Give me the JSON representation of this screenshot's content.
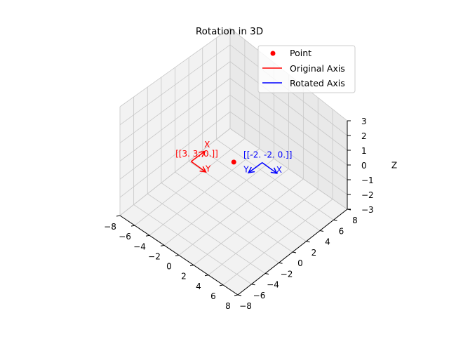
{
  "chart_data": {
    "type": "line3d",
    "title": "Rotation in 3D",
    "xlabel": "",
    "ylabel": "",
    "zlabel": "Z",
    "xlim": [
      -8,
      8
    ],
    "ylim": [
      -8,
      8
    ],
    "zlim": [
      -3,
      3
    ],
    "xticks": [
      -8,
      -6,
      -4,
      -2,
      0,
      2,
      4,
      6,
      8
    ],
    "yticks": [
      -8,
      -6,
      -4,
      -2,
      0,
      2,
      4,
      6,
      8
    ],
    "zticks": [
      -3,
      -2,
      -1,
      0,
      1,
      2,
      3
    ],
    "grid": true,
    "legend_placement": "top-right",
    "series": [
      {
        "name": "Point",
        "kind": "scatter",
        "color": "#ff0000",
        "points": [
          [
            0,
            0,
            0
          ]
        ]
      },
      {
        "name": "Original Axis",
        "kind": "line",
        "color": "#ff0000",
        "vectors": [
          {
            "label": "X",
            "from": [
              -3,
              -3,
              0
            ],
            "to": [
              -3,
              -1,
              0
            ]
          },
          {
            "label": "Y",
            "from": [
              -3,
              -3,
              0
            ],
            "to": [
              -1,
              -3,
              0
            ]
          }
        ]
      },
      {
        "name": "Rotated Axis",
        "kind": "line",
        "color": "#0000ff",
        "vectors": [
          {
            "label": "X",
            "from": [
              2,
              2,
              0
            ],
            "to": [
              4,
              2,
              0
            ]
          },
          {
            "label": "Y",
            "from": [
              2,
              2,
              0
            ],
            "to": [
              2,
              0,
              0
            ]
          }
        ]
      }
    ],
    "annotations": [
      {
        "text": "[[3. 3. 0.]]",
        "at": [
          -3,
          -3,
          0
        ],
        "color": "#ff0000"
      },
      {
        "text": "[[-2. -2.  0.]]",
        "at": [
          2,
          2,
          0
        ],
        "color": "#0000ff"
      }
    ]
  }
}
